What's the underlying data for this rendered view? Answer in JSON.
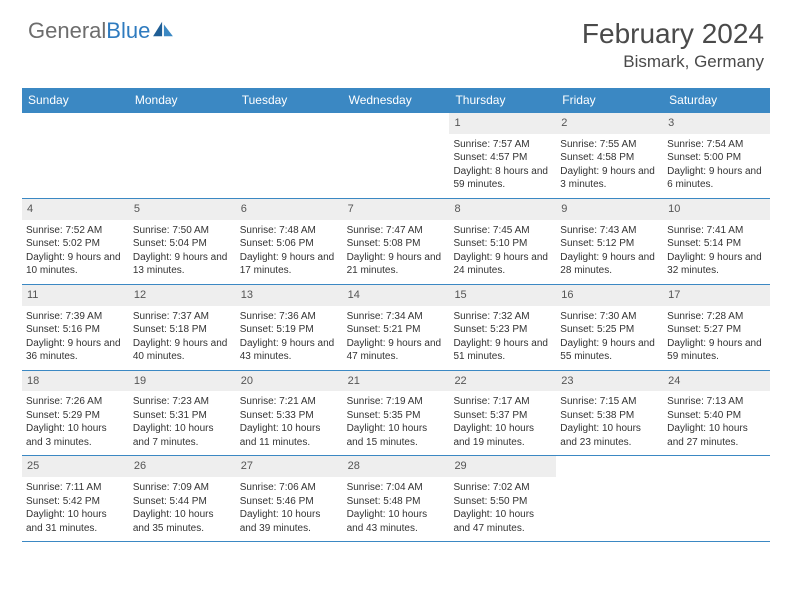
{
  "logo": {
    "textGray": "General",
    "textBlue": "Blue"
  },
  "title": "February 2024",
  "location": "Bismark, Germany",
  "colors": {
    "headerBar": "#3b88c3",
    "dayNumBg": "#eeeeee",
    "borderColor": "#3b88c3",
    "textColor": "#333333",
    "logoGray": "#6d6d6d",
    "logoBlue": "#2f7bbf"
  },
  "dayNames": [
    "Sunday",
    "Monday",
    "Tuesday",
    "Wednesday",
    "Thursday",
    "Friday",
    "Saturday"
  ],
  "weeks": [
    [
      null,
      null,
      null,
      null,
      {
        "d": "1",
        "sr": "7:57 AM",
        "ss": "4:57 PM",
        "dl": "8 hours and 59 minutes."
      },
      {
        "d": "2",
        "sr": "7:55 AM",
        "ss": "4:58 PM",
        "dl": "9 hours and 3 minutes."
      },
      {
        "d": "3",
        "sr": "7:54 AM",
        "ss": "5:00 PM",
        "dl": "9 hours and 6 minutes."
      }
    ],
    [
      {
        "d": "4",
        "sr": "7:52 AM",
        "ss": "5:02 PM",
        "dl": "9 hours and 10 minutes."
      },
      {
        "d": "5",
        "sr": "7:50 AM",
        "ss": "5:04 PM",
        "dl": "9 hours and 13 minutes."
      },
      {
        "d": "6",
        "sr": "7:48 AM",
        "ss": "5:06 PM",
        "dl": "9 hours and 17 minutes."
      },
      {
        "d": "7",
        "sr": "7:47 AM",
        "ss": "5:08 PM",
        "dl": "9 hours and 21 minutes."
      },
      {
        "d": "8",
        "sr": "7:45 AM",
        "ss": "5:10 PM",
        "dl": "9 hours and 24 minutes."
      },
      {
        "d": "9",
        "sr": "7:43 AM",
        "ss": "5:12 PM",
        "dl": "9 hours and 28 minutes."
      },
      {
        "d": "10",
        "sr": "7:41 AM",
        "ss": "5:14 PM",
        "dl": "9 hours and 32 minutes."
      }
    ],
    [
      {
        "d": "11",
        "sr": "7:39 AM",
        "ss": "5:16 PM",
        "dl": "9 hours and 36 minutes."
      },
      {
        "d": "12",
        "sr": "7:37 AM",
        "ss": "5:18 PM",
        "dl": "9 hours and 40 minutes."
      },
      {
        "d": "13",
        "sr": "7:36 AM",
        "ss": "5:19 PM",
        "dl": "9 hours and 43 minutes."
      },
      {
        "d": "14",
        "sr": "7:34 AM",
        "ss": "5:21 PM",
        "dl": "9 hours and 47 minutes."
      },
      {
        "d": "15",
        "sr": "7:32 AM",
        "ss": "5:23 PM",
        "dl": "9 hours and 51 minutes."
      },
      {
        "d": "16",
        "sr": "7:30 AM",
        "ss": "5:25 PM",
        "dl": "9 hours and 55 minutes."
      },
      {
        "d": "17",
        "sr": "7:28 AM",
        "ss": "5:27 PM",
        "dl": "9 hours and 59 minutes."
      }
    ],
    [
      {
        "d": "18",
        "sr": "7:26 AM",
        "ss": "5:29 PM",
        "dl": "10 hours and 3 minutes."
      },
      {
        "d": "19",
        "sr": "7:23 AM",
        "ss": "5:31 PM",
        "dl": "10 hours and 7 minutes."
      },
      {
        "d": "20",
        "sr": "7:21 AM",
        "ss": "5:33 PM",
        "dl": "10 hours and 11 minutes."
      },
      {
        "d": "21",
        "sr": "7:19 AM",
        "ss": "5:35 PM",
        "dl": "10 hours and 15 minutes."
      },
      {
        "d": "22",
        "sr": "7:17 AM",
        "ss": "5:37 PM",
        "dl": "10 hours and 19 minutes."
      },
      {
        "d": "23",
        "sr": "7:15 AM",
        "ss": "5:38 PM",
        "dl": "10 hours and 23 minutes."
      },
      {
        "d": "24",
        "sr": "7:13 AM",
        "ss": "5:40 PM",
        "dl": "10 hours and 27 minutes."
      }
    ],
    [
      {
        "d": "25",
        "sr": "7:11 AM",
        "ss": "5:42 PM",
        "dl": "10 hours and 31 minutes."
      },
      {
        "d": "26",
        "sr": "7:09 AM",
        "ss": "5:44 PM",
        "dl": "10 hours and 35 minutes."
      },
      {
        "d": "27",
        "sr": "7:06 AM",
        "ss": "5:46 PM",
        "dl": "10 hours and 39 minutes."
      },
      {
        "d": "28",
        "sr": "7:04 AM",
        "ss": "5:48 PM",
        "dl": "10 hours and 43 minutes."
      },
      {
        "d": "29",
        "sr": "7:02 AM",
        "ss": "5:50 PM",
        "dl": "10 hours and 47 minutes."
      },
      null,
      null
    ]
  ],
  "labels": {
    "sunrise": "Sunrise: ",
    "sunset": "Sunset: ",
    "daylight": "Daylight: "
  }
}
